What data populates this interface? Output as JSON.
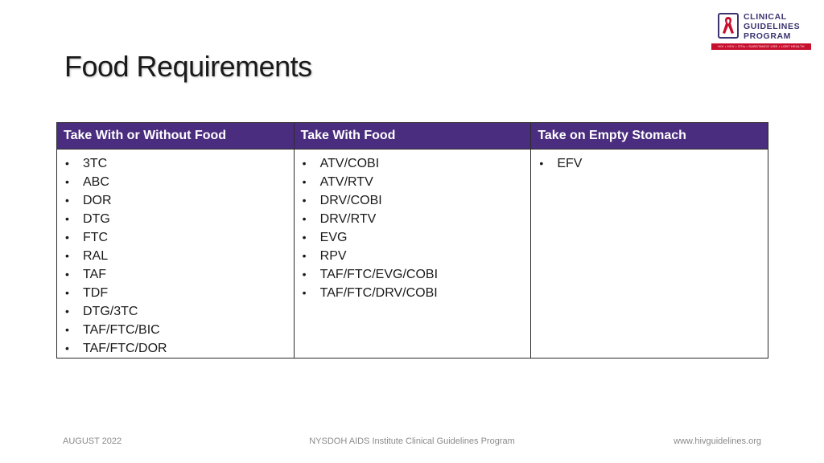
{
  "header": {
    "title": "Food Requirements"
  },
  "logo": {
    "line1": "CLINICAL",
    "line2": "GUIDELINES",
    "line3": "PROGRAM",
    "tagline": "HIV • HCV • STIs • SUBSTANCE USE • LGBT HEALTH",
    "icon": "red-ribbon-icon",
    "colors": {
      "primary": "#3b3470",
      "accent": "#c8102e"
    }
  },
  "table": {
    "header_color": "#4b2d7f",
    "columns": [
      {
        "header": "Take With or Without Food",
        "items": [
          "3TC",
          "ABC",
          "DOR",
          "DTG",
          "FTC",
          "RAL",
          "TAF",
          "TDF",
          "DTG/3TC",
          "TAF/FTC/BIC",
          "TAF/FTC/DOR"
        ]
      },
      {
        "header": "Take With Food",
        "items": [
          "ATV/COBI",
          "ATV/RTV",
          "DRV/COBI",
          "DRV/RTV",
          "EVG",
          "RPV",
          "TAF/FTC/EVG/COBI",
          "TAF/FTC/DRV/COBI"
        ]
      },
      {
        "header": "Take on Empty Stomach",
        "items": [
          "EFV"
        ]
      }
    ]
  },
  "footer": {
    "date": "AUGUST 2022",
    "org": "NYSDOH AIDS Institute Clinical Guidelines Program",
    "url": "www.hivguidelines.org"
  }
}
